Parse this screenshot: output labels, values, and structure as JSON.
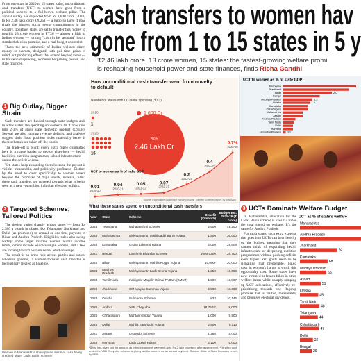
{
  "headline": {
    "line1": "Cash transfers to women hav",
    "line2": "gone from 1 to 15 states in 5 y"
  },
  "standfirst": {
    "lead1": "₹2.46 lakh crore, 13 crore women, 15 states: the fastest-growing welfare promi",
    "lead2": "is reshaping household power and state finances, finds ",
    "byline": "Richa Gandhi"
  },
  "intro": [
    "From one state in 2020 to 15 states today, unconditional cash transfers (UCT) to women have gone from a political novelty to a full-blown welfare pillar. The annual outlay has exploded from Rs 1,600 crore (2020) to Rs 2.46 lakh crore (2025) — a jump so large it now rivals the biggest social sector commitments in the country. Together, states are set to transfer this money to roughly 13 crore women in FY26 — almost a fifth of India's women — turning \"cash in her account\" into a standard election promise, and a real budget constraint.",
    "That's the new arithmetic of Indian welfare: direct money to women, designed with poll-time gains in mind, but producing effects that extend beyond votes — in household spending, women's bargaining power, and state finances."
  ],
  "sections": [
    {
      "number": "1",
      "heading": "Big Outlay, Bigger Strain",
      "paragraphs": [
        "Cash transfers are funded through state budgets and, in a few states, the spending on women's UCT now runs into 2-3% of gross state domestic product (GSDP). Several are also running revenue deficits, and analyses suggest their fiscal position looks materially better if these schemes are taken off the books.",
        "The trade-off is blunt: every extra rupee committed here is a rupee harder to deploy elsewhere — health facilities, nutrition programmes, school infrastructure — unless the deficit widens.",
        "Yet, states keep expanding them because the payout is visible, measurable, and politically profitable. Distinct by the need to cater specifically to women voters beyond the promises of 'bijli, sadak, makaan, pani', these cash transfers are targeted towards what is being seen as a new voting bloc in Indian electoral politics."
      ]
    },
    {
      "number": "2",
      "heading": "Targeted Schemes, Tailored Politics",
      "paragraphs": [
        "The design varies sharply across states — from Rs 2,500 a month in places like Telangana, Jharkhand and Delhi (as promised) to annual or one-time payouts in Bihar and Andhra Pradesh. Eligibility rules also swing widely: some target married women within income limits, others include widows/single women, and a few are inching toward near-universal adult coverage.",
        "The result is an arms race across parties and states: whoever governs, a women-focused cash transfer is increasingly treated as baseline."
      ]
    },
    {
      "number": "3",
      "heading": "UCTs Dominate Welfare Budget",
      "paragraphs": [
        "In Maharashtra, allocation for the Ladki Bahin scheme is over 1.5 times the total spend on welfare. It's the same for Andhra Pradesh.",
        "For most states, such extra expense that goes into UCTs can bear heavily on the budget, meaning that they cannot think of expanding health infrastructure or deepening nutrition programmes without pushing deficits even higher. Yet, govts seem to be signalling that predictable, liquid cash in women's hands is worth this opportunity cost. Some states have now trimmed or frozen hikes in other welfare items while sharply ramping up UCT allocations, effectively re-prioritising towards one flagship promise that is visible, measurable, and promises electoral dividends."
      ]
    }
  ],
  "photo_caption": "Women in Maharashtra show phone alerts of cash being credited under Ladki Bahin scheme",
  "infographic": {
    "title": "How unconditional cash transfer went from novelty to default",
    "states_label": "Number of states with UCT",
    "spending_label": "Total spending (₹ Cr)",
    "years": [
      "2020",
      "2025"
    ],
    "states": [
      1,
      15
    ],
    "spending": [
      "1,600 Cr",
      "2.46 Lakh Cr"
    ],
    "source": "Source: Expenditure Switching Financing Income Transfer Schemes report, by Axis Bank"
  },
  "chart_data": [
    {
      "type": "line",
      "title": "UCT to women as % of India GDP",
      "categories": [
        "2019-20",
        "2020-21",
        "2021-22",
        "2022-23",
        "2023-24",
        "2024-25",
        "2025-26"
      ],
      "values": [
        0.01,
        0.04,
        0.05,
        0.07,
        0.2,
        0.4,
        0.7
      ],
      "value_labels": [
        "0.01",
        "0.04",
        "0.05",
        "0.07",
        "0.2",
        "0.4",
        "0.7%"
      ],
      "ylim": [
        0,
        0.7
      ],
      "color": "#e2392b",
      "grid": false
    },
    {
      "type": "bar",
      "orientation": "horizontal",
      "title": "UCT to women as % of state GDP",
      "categories": [
        "Telangana",
        "Jharkhand",
        "Bihar",
        "Bengal",
        "Madhya Pradesh",
        "Odisha",
        "Karnataka",
        "Chhattisgarh",
        "Maharashtra",
        "Assam",
        "Andhra Pradesh",
        "Tamil Nadu",
        "Delhi",
        "Haryana",
        "Himachal Pradesh"
      ],
      "values": [
        3.0,
        2.7,
        2.0,
        1.5,
        1.2,
        1.1,
        1.0,
        1.0,
        0.8,
        0.8,
        0.5,
        0.45,
        0.4,
        0.4,
        0.1
      ],
      "value_labels": [
        null,
        null,
        "2.0",
        null,
        "1.2",
        "1.1",
        null,
        null,
        null,
        null,
        null,
        null,
        null,
        null,
        "0.1"
      ],
      "xlim": [
        0,
        3.2
      ],
      "color": "#e2392b",
      "grid": false
    },
    {
      "type": "bar",
      "orientation": "horizontal",
      "title": "UCT as % of state's welfare",
      "categories": [
        "Maharashtra",
        "Andhra Pradesh",
        "Jharkhand",
        "Karnataka",
        "Madhya Pradesh",
        "Assam",
        "Odisha",
        "Tamil Nadu",
        "Telangana",
        "Chhattisgarh",
        "Delhi",
        "Bengal"
      ],
      "values": [
        155,
        152,
        92,
        68,
        65,
        51,
        45,
        48,
        44,
        47,
        32,
        29
      ],
      "value_labels": [
        null,
        null,
        "92",
        "68",
        "65",
        "51",
        "45",
        "48",
        "44",
        "47",
        "32",
        "29"
      ],
      "xlim": [
        0,
        150
      ],
      "color": "#e2392b",
      "grid": false
    }
  ],
  "table": {
    "title": "What these states spend on unconditional cash transfers",
    "columns": [
      "Year",
      "State",
      "Scheme",
      "Benefit (₹/month)",
      "Budget Est. 2025-26 (₹ crore)"
    ],
    "rows": [
      [
        "2023",
        "Telangana",
        "Mahalakshmi Scheme",
        "2,500",
        "49,200"
      ],
      [
        "2024",
        "Maharashtra",
        "Mukhyamantri Majhi Ladki Bahin Yojana",
        "1,500",
        "36,000"
      ],
      [
        "2024",
        "Karnataka",
        "Gruha Lakshmi Yojana",
        "2,000",
        "28,608"
      ],
      [
        "2021",
        "Bengal",
        "Lakshmir Bhandar Scheme",
        "1000-1200",
        "26,700"
      ],
      [
        "2025",
        "Bihar",
        "Mukhyamantri Mahila Rojgar Yojana",
        "10,000*",
        "20,000"
      ],
      [
        "2023",
        "Madhya Pradesh",
        "Mukhyamantri Ladli Behna Yojana",
        "1,250",
        "18,669"
      ],
      [
        "2023",
        "Tamil Nadu",
        "Kalaignar Magalir Urimai Thittam (KMUT)",
        "1,000",
        "13,807"
      ],
      [
        "2024",
        "Jharkhand",
        "CM Maiyan Samman Yojana",
        "2,500",
        "13,363"
      ],
      [
        "2024",
        "Odisha",
        "Subhadra Scheme",
        "833",
        "10,145"
      ],
      [
        "2020",
        "Andhra",
        "YSR Cheyutha",
        "18,750**",
        "8,000"
      ],
      [
        "2024",
        "Chhattisgarh",
        "Mahtari Vandan Yojana",
        "1,000",
        "5,500"
      ],
      [
        "2025",
        "Delhi",
        "Mahila Samriddhi Yojana",
        "2,500",
        "5,110"
      ],
      [
        "2021",
        "Assam",
        "Orunodoi Scheme",
        "1,250",
        "5,000"
      ],
      [
        "2024",
        "Haryana",
        "Lado Laxmi Yojana",
        "2,100",
        "5,000"
      ],
      [
        "2024",
        "Himachal",
        "Indira Gandhi Pyari Behna Yojana",
        "1,500",
        "138"
      ]
    ],
    "footnote": "*Bihar has given out the amount as initial instalment; payment up to Rs 2 lakh promised after assessment. **Andhra govt under the YSR Cheyutha scheme is giving out the amount as an annual payment. Source: State of State Finances report, by PRS"
  }
}
